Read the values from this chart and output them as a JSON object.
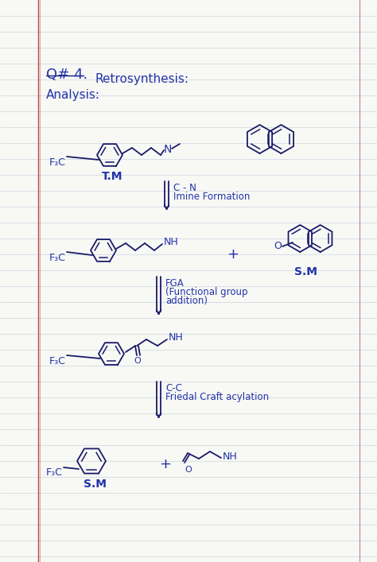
{
  "bg_color": "#f8f8f5",
  "line_color": "#b8c8d8",
  "ink_color": "#2233aa",
  "dark_ink": "#1a1a6a",
  "red_line_color": "#cc3333",
  "margin_line_color": "#bb4444",
  "right_line_color": "#aa88aa",
  "title_line1": "Q# 4.",
  "title_line2": "Retrosynthesis:",
  "analysis": "Analysis:",
  "arrow1_label1": "C - N",
  "arrow1_label2": "Imine Formation",
  "arrow2_label1": "FGA",
  "arrow2_label2": "(Functional group",
  "arrow2_label3": "addition)",
  "arrow3_label1": "C-C",
  "arrow3_label2": "Friedal Craft acylation",
  "label_tm": "T.M",
  "label_sm1": "S.M",
  "label_sm2": "S.M",
  "figsize": [
    4.74,
    7.07
  ],
  "dpi": 100
}
